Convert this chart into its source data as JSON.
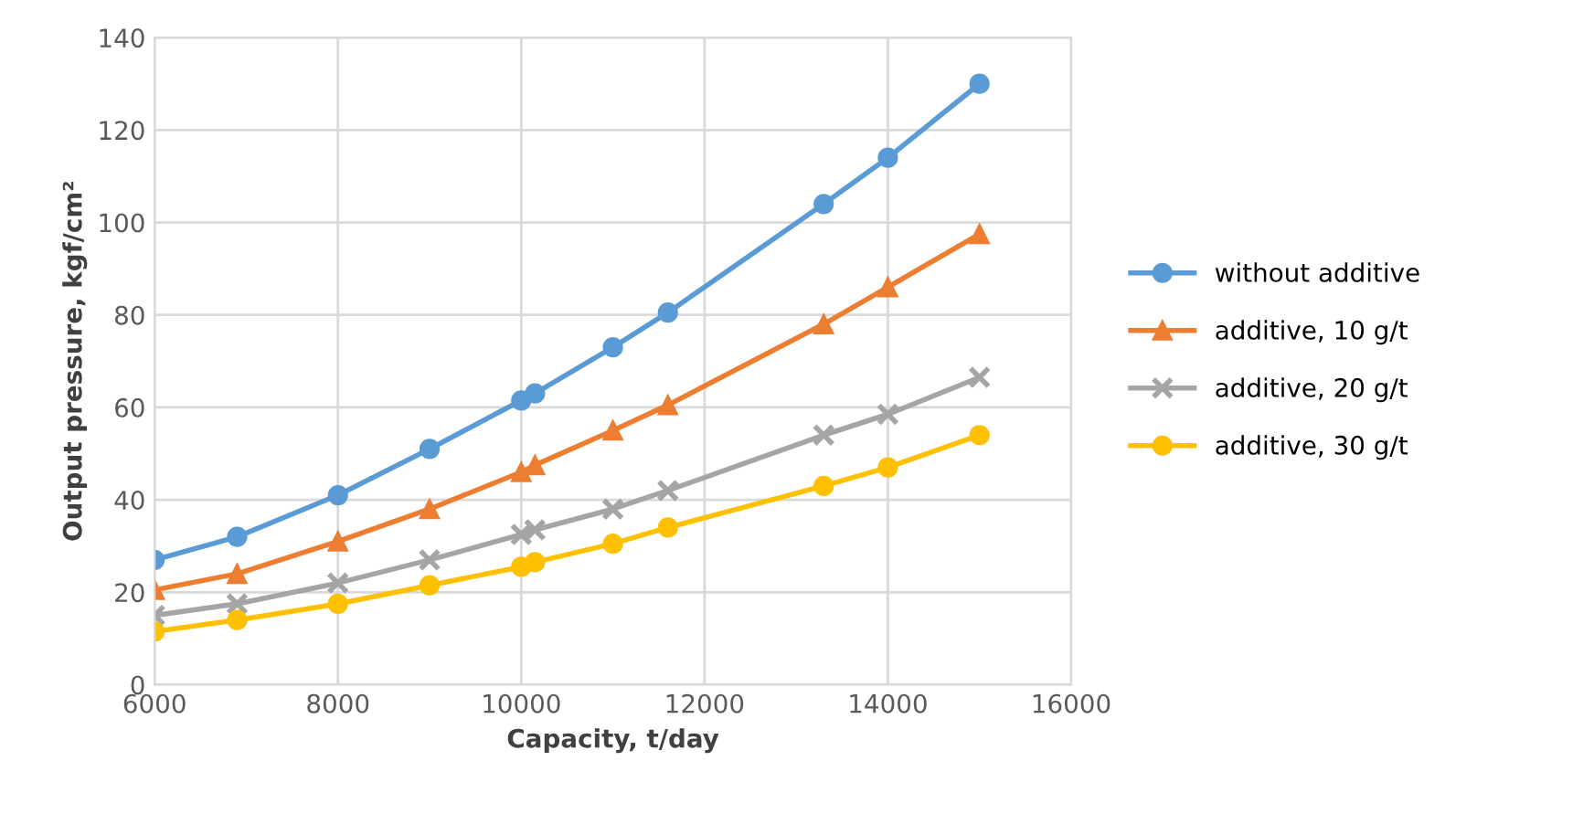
{
  "chart_data": {
    "type": "line",
    "xlabel": "Capacity, t/day",
    "ylabel": "Output pressure, kgf/cm²",
    "x": [
      6000,
      6900,
      8000,
      9000,
      10000,
      10150,
      11000,
      11600,
      13300,
      14000,
      15000
    ],
    "xlim": [
      6000,
      16000
    ],
    "xticks": [
      6000,
      8000,
      10000,
      12000,
      14000,
      16000
    ],
    "ylim": [
      0,
      140
    ],
    "yticks": [
      0,
      20,
      40,
      60,
      80,
      100,
      120,
      140
    ],
    "grid": true,
    "legend": "right",
    "line_style": "solid",
    "series": [
      {
        "name": "without additive",
        "color": "#5b9bd5",
        "marker": "circle",
        "values": [
          27,
          32,
          41,
          51,
          61.5,
          63,
          73,
          80.5,
          104,
          114,
          130
        ]
      },
      {
        "name": "additive, 10 g/t",
        "color": "#ed7d31",
        "marker": "triangle",
        "values": [
          20.5,
          24,
          31,
          38,
          46,
          47.5,
          55,
          60.5,
          78,
          86,
          97.5
        ]
      },
      {
        "name": "additive, 20 g/t",
        "color": "#a5a5a5",
        "marker": "cross",
        "values": [
          15,
          17.5,
          22,
          27,
          32.5,
          33.5,
          38,
          42,
          54,
          58.5,
          66.5
        ]
      },
      {
        "name": "additive, 30 g/t",
        "color": "#ffc000",
        "marker": "circle",
        "values": [
          11.5,
          14,
          17.5,
          21.5,
          25.5,
          26.5,
          30.5,
          34,
          43,
          47,
          54
        ]
      }
    ]
  }
}
